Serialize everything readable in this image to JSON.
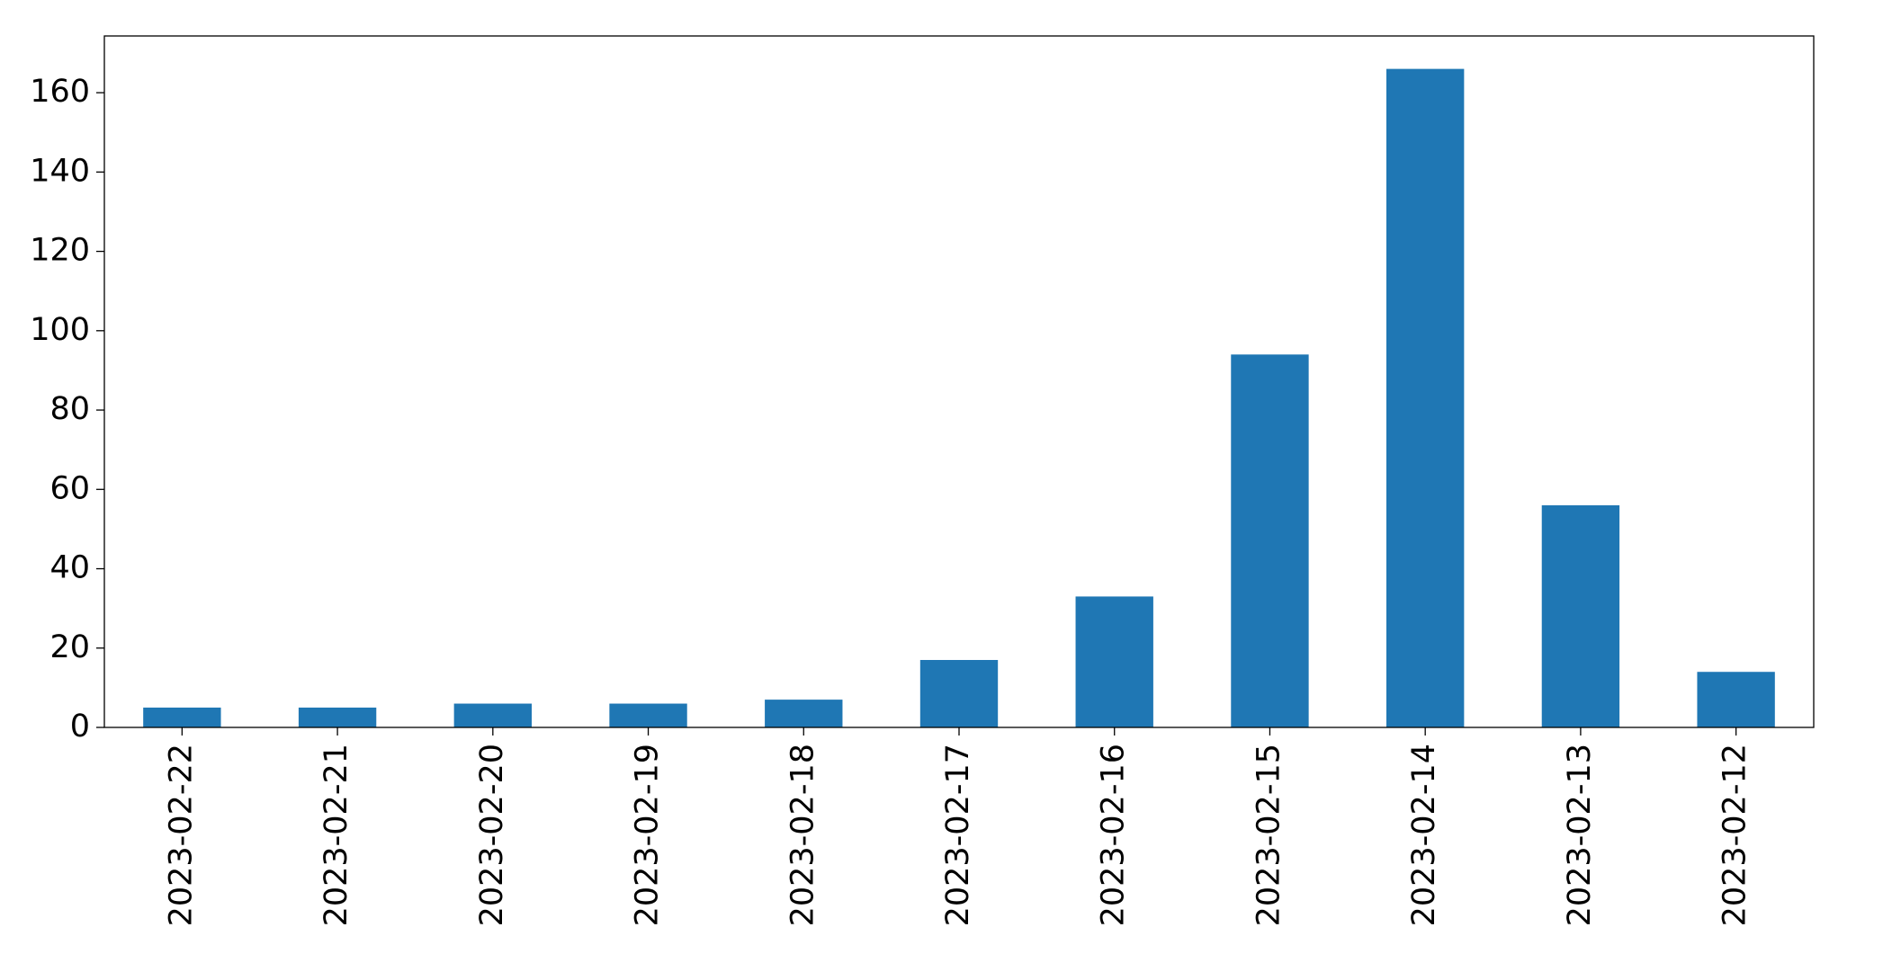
{
  "chart_data": {
    "type": "bar",
    "categories": [
      "2023-02-22",
      "2023-02-21",
      "2023-02-20",
      "2023-02-19",
      "2023-02-18",
      "2023-02-17",
      "2023-02-16",
      "2023-02-15",
      "2023-02-14",
      "2023-02-13",
      "2023-02-12"
    ],
    "values": [
      5,
      5,
      6,
      6,
      7,
      17,
      33,
      94,
      166,
      56,
      14
    ],
    "color": "#1f77b4",
    "ylim": [
      0,
      174.3
    ],
    "yticks": [
      0,
      20,
      40,
      60,
      80,
      100,
      120,
      140,
      160
    ],
    "grid": false
  }
}
